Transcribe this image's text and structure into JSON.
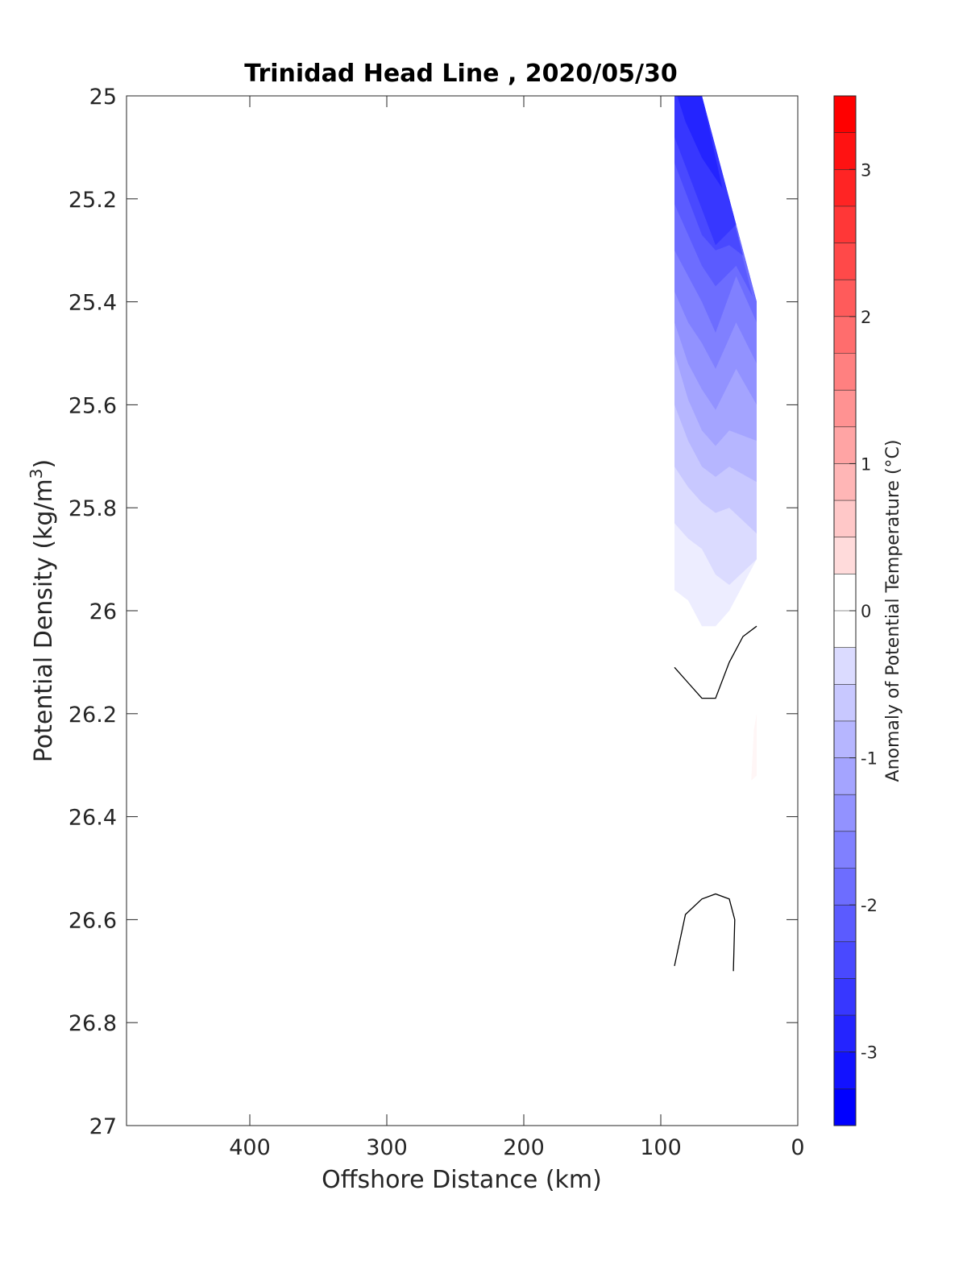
{
  "chart_data": {
    "type": "contour",
    "title": "Trinidad Head Line , 2020/05/30",
    "xlabel": "Offshore Distance (km)",
    "ylabel": "Potential Density (kg/m",
    "ylabel_sup": "3",
    "ylabel_close": ")",
    "xlim": [
      490,
      0
    ],
    "ylim": [
      25,
      27
    ],
    "x_reversed": true,
    "y_reversed": true,
    "xticks": [
      400,
      300,
      200,
      100,
      0
    ],
    "xtick_labels": [
      "400",
      "300",
      "200",
      "100",
      "0"
    ],
    "yticks": [
      25,
      25.2,
      25.4,
      25.6,
      25.8,
      26,
      26.2,
      26.4,
      26.6,
      26.8,
      27
    ],
    "ytick_labels": [
      "25",
      "25.2",
      "25.4",
      "25.6",
      "25.8",
      "26",
      "26.2",
      "26.4",
      "26.6",
      "26.8",
      "27"
    ],
    "grid": false,
    "colorbar": {
      "label": "Anomaly of Potential Temperature (°C)",
      "range": [
        -3.5,
        3.5
      ],
      "step": 0.25,
      "ticks": [
        3,
        2,
        1,
        0,
        -1,
        -2,
        -3
      ],
      "tick_labels": [
        "3",
        "2",
        "1",
        "0",
        "-1",
        "-2",
        "-3"
      ],
      "cold_color": "#0000ff",
      "warm_color": "#ff0000",
      "neutral_color": "#ffffff"
    },
    "anomaly_stations_km": [
      90,
      80,
      70,
      60,
      50,
      40,
      30
    ],
    "filled_contours": [
      {
        "level": -0.25,
        "polygon": [
          [
            90,
            25.0
          ],
          [
            70,
            25.0
          ],
          [
            30,
            25.4
          ],
          [
            30,
            25.9
          ],
          [
            50,
            26.0
          ],
          [
            60,
            26.03
          ],
          [
            70,
            26.03
          ],
          [
            80,
            25.98
          ],
          [
            90,
            25.96
          ]
        ]
      },
      {
        "level": -0.5,
        "polygon": [
          [
            90,
            25.0
          ],
          [
            70,
            25.0
          ],
          [
            30,
            25.4
          ],
          [
            30,
            25.9
          ],
          [
            50,
            25.95
          ],
          [
            60,
            25.93
          ],
          [
            70,
            25.88
          ],
          [
            80,
            25.86
          ],
          [
            90,
            25.83
          ]
        ]
      },
      {
        "level": -0.75,
        "polygon": [
          [
            90,
            25.0
          ],
          [
            70,
            25.0
          ],
          [
            30,
            25.4
          ],
          [
            30,
            25.85
          ],
          [
            50,
            25.8
          ],
          [
            60,
            25.81
          ],
          [
            70,
            25.79
          ],
          [
            80,
            25.76
          ],
          [
            90,
            25.72
          ]
        ]
      },
      {
        "level": -1.0,
        "polygon": [
          [
            90,
            25.0
          ],
          [
            70,
            25.0
          ],
          [
            30,
            25.4
          ],
          [
            30,
            25.75
          ],
          [
            50,
            25.72
          ],
          [
            60,
            25.74
          ],
          [
            70,
            25.72
          ],
          [
            80,
            25.67
          ],
          [
            90,
            25.6
          ]
        ]
      },
      {
        "level": -1.25,
        "polygon": [
          [
            90,
            25.0
          ],
          [
            70,
            25.0
          ],
          [
            30,
            25.4
          ],
          [
            30,
            25.67
          ],
          [
            50,
            25.65
          ],
          [
            60,
            25.68
          ],
          [
            70,
            25.65
          ],
          [
            80,
            25.59
          ],
          [
            90,
            25.5
          ]
        ]
      },
      {
        "level": -1.5,
        "polygon": [
          [
            90,
            25.0
          ],
          [
            70,
            25.0
          ],
          [
            30,
            25.4
          ],
          [
            30,
            25.6
          ],
          [
            45,
            25.53
          ],
          [
            60,
            25.61
          ],
          [
            70,
            25.57
          ],
          [
            80,
            25.52
          ],
          [
            90,
            25.44
          ]
        ]
      },
      {
        "level": -1.75,
        "polygon": [
          [
            90,
            25.0
          ],
          [
            70,
            25.0
          ],
          [
            30,
            25.4
          ],
          [
            30,
            25.52
          ],
          [
            45,
            25.44
          ],
          [
            60,
            25.53
          ],
          [
            70,
            25.48
          ],
          [
            80,
            25.44
          ],
          [
            90,
            25.38
          ]
        ]
      },
      {
        "level": -2.0,
        "polygon": [
          [
            90,
            25.0
          ],
          [
            70,
            25.0
          ],
          [
            30,
            25.4
          ],
          [
            30,
            25.44
          ],
          [
            45,
            25.35
          ],
          [
            60,
            25.46
          ],
          [
            70,
            25.4
          ],
          [
            80,
            25.35
          ],
          [
            90,
            25.3
          ]
        ]
      },
      {
        "level": -2.25,
        "polygon": [
          [
            90,
            25.0
          ],
          [
            70,
            25.0
          ],
          [
            33,
            25.39
          ],
          [
            45,
            25.33
          ],
          [
            60,
            25.37
          ],
          [
            70,
            25.33
          ],
          [
            80,
            25.27
          ],
          [
            90,
            25.21
          ]
        ]
      },
      {
        "level": -2.5,
        "polygon": [
          [
            90,
            25.0
          ],
          [
            70,
            25.0
          ],
          [
            40,
            25.31
          ],
          [
            50,
            25.29
          ],
          [
            60,
            25.3
          ],
          [
            70,
            25.27
          ],
          [
            80,
            25.2
          ],
          [
            90,
            25.13
          ]
        ]
      },
      {
        "level": -2.75,
        "polygon": [
          [
            90,
            25.0
          ],
          [
            70,
            25.0
          ],
          [
            45,
            25.25
          ],
          [
            60,
            25.29
          ],
          [
            70,
            25.22
          ],
          [
            80,
            25.15
          ],
          [
            90,
            25.08
          ]
        ]
      },
      {
        "level": -3.0,
        "polygon": [
          [
            88,
            25.0
          ],
          [
            70,
            25.0
          ],
          [
            55,
            25.18
          ],
          [
            70,
            25.12
          ],
          [
            82,
            25.05
          ]
        ]
      },
      {
        "level": 0.25,
        "polygon": [
          [
            30,
            26.2
          ],
          [
            32,
            26.23
          ],
          [
            34,
            26.33
          ],
          [
            30,
            26.32
          ]
        ]
      }
    ],
    "zero_contour_lines": [
      [
        [
          90,
          26.11
        ],
        [
          80,
          26.14
        ],
        [
          70,
          26.17
        ],
        [
          60,
          26.17
        ],
        [
          50,
          26.1
        ],
        [
          40,
          26.05
        ],
        [
          30,
          26.03
        ]
      ],
      [
        [
          90,
          26.69
        ],
        [
          82,
          26.59
        ],
        [
          70,
          26.56
        ],
        [
          60,
          26.55
        ],
        [
          50,
          26.56
        ],
        [
          46,
          26.6
        ],
        [
          47,
          26.7
        ]
      ]
    ]
  }
}
